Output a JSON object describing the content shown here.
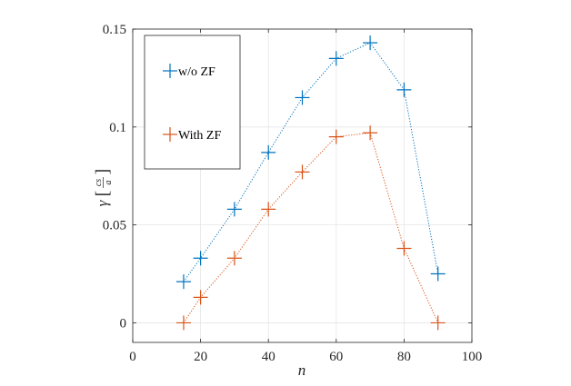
{
  "chart_data": {
    "type": "line",
    "title": "",
    "xlabel": "n",
    "ylabel": "γ[cs/a]",
    "ylabel_parts": {
      "symbol": "γ",
      "numerator": "cs",
      "denominator": "a"
    },
    "xlim": [
      0,
      100
    ],
    "ylim": [
      -0.01,
      0.15
    ],
    "xticks": [
      0,
      20,
      40,
      60,
      80,
      100
    ],
    "xtick_labels": [
      "0",
      "20",
      "40",
      "60",
      "80",
      "100"
    ],
    "yticks": [
      0,
      0.05,
      0.1,
      0.15
    ],
    "ytick_labels": [
      "0",
      "0.05",
      "0.1",
      "0.15"
    ],
    "grid": true,
    "legend_position": "top-left",
    "series": [
      {
        "name": "w/o ZF",
        "color": "#0072BD",
        "marker": "plus",
        "line_style": "dotted",
        "x": [
          15,
          20,
          30,
          40,
          50,
          60,
          70,
          80,
          90
        ],
        "values": [
          0.021,
          0.033,
          0.058,
          0.087,
          0.115,
          0.135,
          0.143,
          0.119,
          0.025
        ]
      },
      {
        "name": "With ZF",
        "color": "#D95319",
        "marker": "plus",
        "line_style": "dotted",
        "x": [
          15,
          20,
          30,
          40,
          50,
          60,
          70,
          80,
          90
        ],
        "values": [
          0.0,
          0.013,
          0.033,
          0.058,
          0.077,
          0.095,
          0.097,
          0.038,
          0.0
        ]
      }
    ]
  }
}
